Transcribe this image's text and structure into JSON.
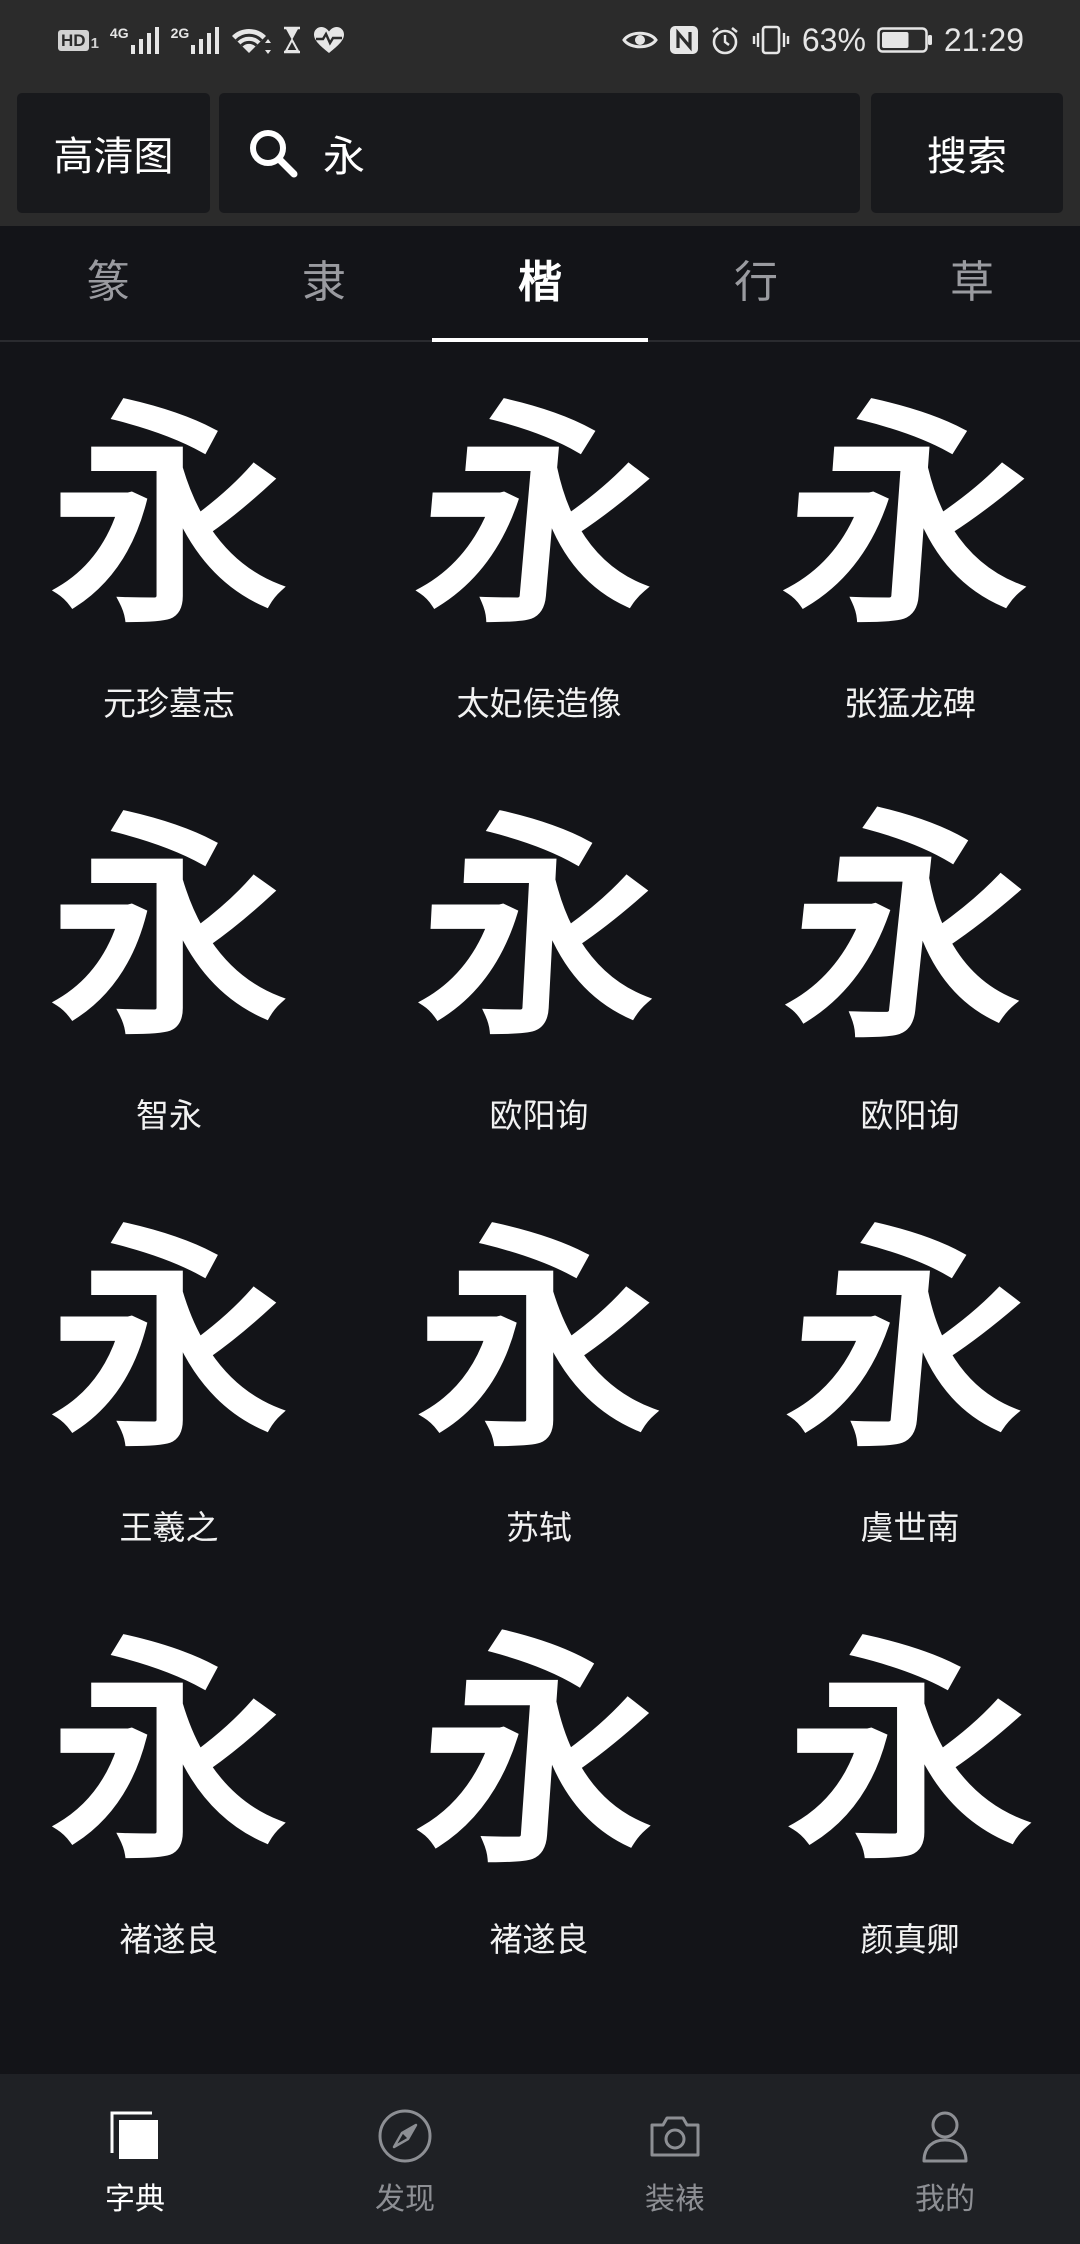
{
  "status_bar": {
    "hd_label": "HD",
    "hd_sim": "1",
    "sim1_network": "4G",
    "sim2_network": "2G",
    "battery_percent": "63%",
    "battery_level": 0.63,
    "time": "21:29",
    "left_icons": [
      "signal-bars-icon",
      "wifi-icon",
      "hourglass-icon",
      "health-icon"
    ],
    "right_icons": [
      "eye-comfort-icon",
      "nfc-icon",
      "alarm-icon",
      "vibrate-icon",
      "battery-icon"
    ]
  },
  "header": {
    "hd_button_label": "高清图",
    "search": {
      "icon": "search-icon",
      "value": "永"
    },
    "search_button_label": "搜索"
  },
  "tabs": [
    {
      "label": "篆",
      "selected": false
    },
    {
      "label": "隶",
      "selected": false
    },
    {
      "label": "楷",
      "selected": true
    },
    {
      "label": "行",
      "selected": false
    },
    {
      "label": "草",
      "selected": false
    }
  ],
  "results": [
    {
      "glyph": "永",
      "label": "元珍墓志"
    },
    {
      "glyph": "永",
      "label": "太妃侯造像"
    },
    {
      "glyph": "永",
      "label": "张猛龙碑"
    },
    {
      "glyph": "永",
      "label": "智永"
    },
    {
      "glyph": "永",
      "label": "欧阳询"
    },
    {
      "glyph": "永",
      "label": "欧阳询"
    },
    {
      "glyph": "永",
      "label": "王羲之"
    },
    {
      "glyph": "永",
      "label": "苏轼"
    },
    {
      "glyph": "永",
      "label": "虞世南"
    },
    {
      "glyph": "永",
      "label": "褚遂良"
    },
    {
      "glyph": "永",
      "label": "褚遂良"
    },
    {
      "glyph": "永",
      "label": "颜真卿"
    }
  ],
  "bottom_nav": [
    {
      "label": "字典",
      "icon": "dictionary-icon",
      "selected": true
    },
    {
      "label": "发现",
      "icon": "compass-icon",
      "selected": false
    },
    {
      "label": "装裱",
      "icon": "camera-icon",
      "selected": false
    },
    {
      "label": "我的",
      "icon": "profile-icon",
      "selected": false
    }
  ],
  "theme": {
    "background": "#131418",
    "top_bar": "#2b2b2b",
    "control": "#18191c",
    "bottom_nav": "#1f2125",
    "muted_tab": "#9a9ba0",
    "muted_nav": "#8d8f94",
    "active": "#ffffff"
  }
}
